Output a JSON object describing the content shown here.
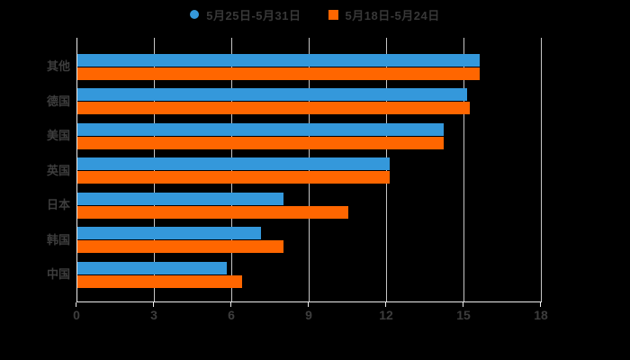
{
  "legend": {
    "items": [
      {
        "label": "5月25日-5月31日",
        "color": "#3498db",
        "marker": "circle"
      },
      {
        "label": "5月18日-5月24日",
        "color": "#ff6600",
        "marker": "square"
      }
    ]
  },
  "chart_data": {
    "type": "bar",
    "orientation": "horizontal",
    "title": "",
    "xlabel": "",
    "ylabel": "",
    "categories": [
      "其他",
      "德国",
      "美国",
      "英国",
      "日本",
      "韩国",
      "中国"
    ],
    "series": [
      {
        "name": "5月25日-5月31日",
        "color": "#3498db",
        "values": [
          15.6,
          15.1,
          14.2,
          12.1,
          8.0,
          7.1,
          5.8
        ]
      },
      {
        "name": "5月18日-5月24日",
        "color": "#ff6600",
        "values": [
          15.6,
          15.2,
          14.2,
          12.1,
          10.5,
          8.0,
          6.4
        ]
      }
    ],
    "xlim": [
      0,
      18
    ],
    "xticks": [
      0,
      3,
      6,
      9,
      12,
      15,
      18
    ],
    "grid": true,
    "legend_position": "top-center",
    "background_color": "#000000",
    "text_color": "#3d3d3d",
    "axis_color": "#ededed",
    "grid_color": "#c6c6c6"
  }
}
